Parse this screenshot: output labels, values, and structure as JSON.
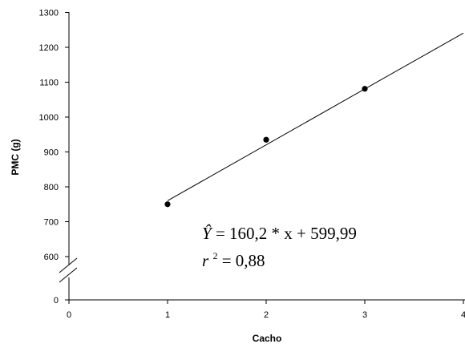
{
  "chart_data": {
    "type": "scatter",
    "xlabel": "Cacho",
    "ylabel": "PMC (g)",
    "xlim": [
      0,
      4
    ],
    "ylim": [
      0,
      1300
    ],
    "axis_break": {
      "axis": "y",
      "between": [
        0,
        600
      ]
    },
    "x_ticks": [
      "0",
      "1",
      "2",
      "3",
      "4"
    ],
    "y_ticks": [
      "0",
      "600",
      "700",
      "800",
      "900",
      "1000",
      "1100",
      "1200",
      "1300"
    ],
    "grid": false,
    "points": [
      {
        "x": 1,
        "y": 750
      },
      {
        "x": 2,
        "y": 935
      },
      {
        "x": 3,
        "y": 1081
      }
    ],
    "regression": {
      "slope": 160.2,
      "intercept": 599.99,
      "x_range": [
        1,
        4
      ],
      "equation_left": "Ŷ",
      "equation_right": "= 160,2 * x + 599,99",
      "r2_left": "r",
      "r2_sup": "2",
      "r2_right": " = 0,88"
    }
  }
}
